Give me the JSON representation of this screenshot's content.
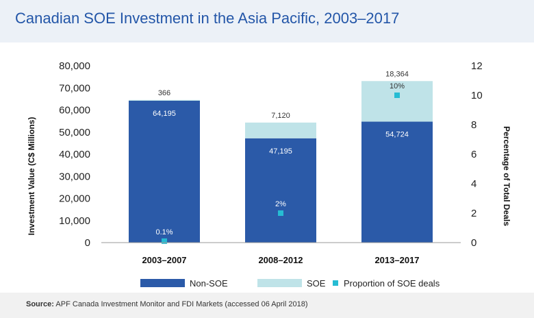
{
  "title": "Canadian SOE Investment in the Asia Pacific, 2003–2017",
  "source": {
    "label": "Source:",
    "text": "APF Canada Investment Monitor and FDI Markets (accessed 06 April 2018)"
  },
  "colors": {
    "non_soe": "#2b5aa8",
    "soe": "#bfe3e8",
    "proportion": "#26bcd3",
    "title": "#2356a8",
    "header_bg": "#ecf1f7"
  },
  "chart_data": {
    "type": "bar",
    "stacked": true,
    "categories": [
      "2003–2007",
      "2008–2012",
      "2013–2017"
    ],
    "series": [
      {
        "name": "Non-SOE",
        "values": [
          64195,
          47195,
          54724
        ],
        "labels": [
          "64,195",
          "47,195",
          "54,724"
        ]
      },
      {
        "name": "SOE",
        "values": [
          366,
          7120,
          18364
        ],
        "labels": [
          "366",
          "7,120",
          "18,364"
        ]
      }
    ],
    "proportion": {
      "name": "Proportion of SOE deals",
      "values": [
        0.1,
        2,
        10
      ],
      "labels": [
        "0.1%",
        "2%",
        "10%"
      ]
    },
    "ylabel": "Investment Value (C$ Millions)",
    "y2label": "Percentage of Total Deals",
    "ylim": [
      0,
      80000
    ],
    "y2lim": [
      0,
      12
    ],
    "yticks": [
      "0",
      "10,000",
      "20,000",
      "30,000",
      "40,000",
      "50,000",
      "60,000",
      "70,000",
      "80,000"
    ],
    "y2ticks": [
      "0",
      "2",
      "4",
      "6",
      "8",
      "10",
      "12"
    ],
    "legend": [
      "Non-SOE",
      "SOE",
      "Proportion of SOE deals"
    ],
    "legend_position": "bottom",
    "grid": false
  }
}
